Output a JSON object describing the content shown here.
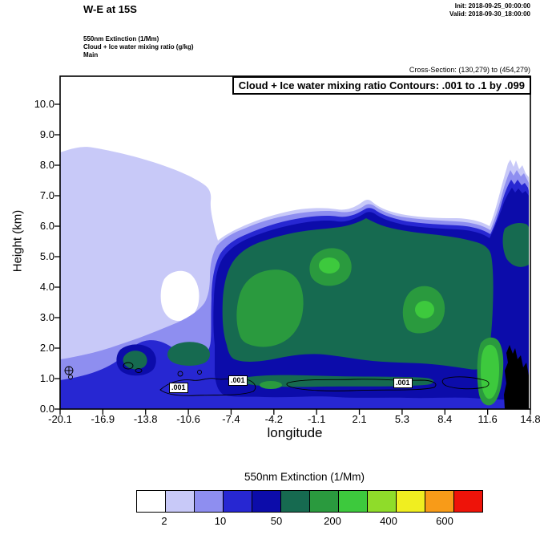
{
  "header": {
    "title": "W-E at 15S",
    "init": "Init: 2018-09-25_00:00:00",
    "valid": "Valid: 2018-09-30_18:00:00",
    "field_lines": [
      "550nm Extinction  (1/Mm)",
      "Cloud + Ice water mixing ratio  (g/kg)",
      "Main"
    ],
    "cross_section": "Cross-Section: (130,279) to (454,279)"
  },
  "plot": {
    "contour_note": "Cloud + Ice water mixing ratio Contours: .001 to .1 by .099",
    "xlabel": "longitude",
    "ylabel": "Height (km)",
    "x_ticks": [
      "-20.1",
      "-16.9",
      "-13.8",
      "-10.6",
      "-7.4",
      "-4.2",
      "-1.1",
      "2.1",
      "5.3",
      "8.4",
      "11.6",
      "14.8"
    ],
    "y_ticks": [
      "10.0",
      "9.0",
      "8.0",
      "7.0",
      "6.0",
      "5.0",
      "4.0",
      "3.0",
      "2.0",
      "1.0",
      "0.0"
    ],
    "contour_labels": [
      ".001",
      ".001",
      ".001"
    ]
  },
  "colorbar": {
    "title": "550nm Extinction  (1/Mm)",
    "colors": [
      "#ffffff",
      "#c8c9f8",
      "#8e8ef0",
      "#2727d2",
      "#0c0caa",
      "#166a50",
      "#2a9a3e",
      "#3dc93d",
      "#8fdc2a",
      "#f0ee20",
      "#f89b18",
      "#ee1309"
    ],
    "labels": [
      "2",
      "10",
      "50",
      "200",
      "400",
      "600"
    ]
  },
  "chart_data": {
    "type": "filled-contour-cross-section",
    "title": "W-E at 15S",
    "xlabel": "longitude",
    "ylabel": "Height (km)",
    "x_ticks": [
      -20.1,
      -16.9,
      -13.8,
      -10.6,
      -7.4,
      -4.2,
      -1.1,
      2.1,
      5.3,
      8.4,
      11.6,
      14.8
    ],
    "y_ticks": [
      0,
      1,
      2,
      3,
      4,
      5,
      6,
      7,
      8,
      9,
      10
    ],
    "xlim": [
      -20.1,
      14.8
    ],
    "ylim": [
      0,
      10.9
    ],
    "fill_field": "550nm Extinction (1/Mm)",
    "fill_labeled_levels": [
      2,
      10,
      50,
      200,
      400,
      600
    ],
    "line_field": "Cloud + Ice water mixing ratio (g/kg)",
    "line_levels": [
      0.001,
      0.1
    ],
    "line_interval": 0.099,
    "features": [
      "Pale lavender low-extinction plume (2-10 1/Mm) on the west side from the surface to ~8.3 km between longitudes -20.1 and -11",
      "Main elevated aerosol/cloud layer (10-200+ 1/Mm, blue through green) spanning longitudes ~-13 to 14.8 between ~0.5 and 6.7 km",
      "High-extinction green cores near lon -6 to -3 at 2.5-4.5 km, near -1 at 4-4.7 km, near 5-6 at 3-4 km, and along 11-12.5 near the surface",
      "Narrow spike of enhanced extinction reaching ~8.3 km at the eastern edge (lon 14-14.8)",
      "Black terrain silhouette rising to ~2.2 km at the eastern (right) edge",
      "Thin black 0.001 g/kg cloud+ice mixing-ratio contours confined to a shallow layer near 0.5-1.2 km"
    ]
  }
}
